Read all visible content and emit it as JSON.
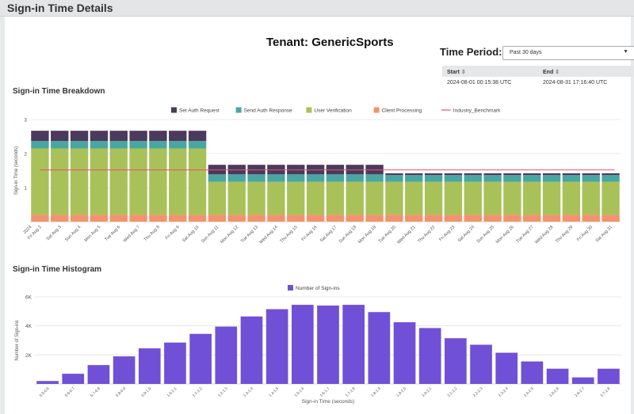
{
  "window": {
    "title": "Sign-in Time Details"
  },
  "tenant": {
    "label": "Tenant: GenericSports"
  },
  "time_period": {
    "label": "Time Period:",
    "selected": "Past 30 days",
    "table_headers": [
      "Start",
      "End"
    ],
    "start": "2024-08-01 00:15:38 UTC",
    "end": "2024-08-31 17:16:40 UTC"
  },
  "breakdown": {
    "title": "Sign-in Time Breakdown"
  },
  "histogram": {
    "title": "Sign-in Time Histogram"
  },
  "chart_data": [
    {
      "type": "bar",
      "stacked": true,
      "ylabel": "Sign-in Time (seconds)",
      "ylim": [
        0,
        3
      ],
      "yticks": [
        1,
        2,
        3
      ],
      "categories": [
        "Fri Aug 2",
        "Sat Aug 3",
        "Sun Aug 4",
        "Mon Aug 5",
        "Tue Aug 6",
        "Wed Aug 7",
        "Thu Aug 8",
        "Fri Aug 9",
        "Sat Aug 10",
        "Sun Aug 11",
        "Mon Aug 12",
        "Tue Aug 13",
        "Wed Aug 14",
        "Thu Aug 15",
        "Fri Aug 16",
        "Sat Aug 17",
        "Sun Aug 18",
        "Mon Aug 19",
        "Tue Aug 20",
        "Wed Aug 21",
        "Thu Aug 22",
        "Fri Aug 23",
        "Sat Aug 24",
        "Sun Aug 25",
        "Mon Aug 26",
        "Tue Aug 27",
        "Wed Aug 28",
        "Thu Aug 29",
        "Fri Aug 30",
        "Sat Aug 31"
      ],
      "first_tick_label": "2024",
      "series": [
        {
          "name": "Client Processing",
          "color": "#f4926c",
          "values": [
            0.2,
            0.2,
            0.2,
            0.2,
            0.2,
            0.2,
            0.2,
            0.2,
            0.2,
            0.2,
            0.2,
            0.2,
            0.2,
            0.2,
            0.2,
            0.2,
            0.2,
            0.2,
            0.2,
            0.2,
            0.2,
            0.2,
            0.2,
            0.2,
            0.2,
            0.2,
            0.2,
            0.2,
            0.2,
            0.2
          ]
        },
        {
          "name": "User Verification",
          "color": "#a9c159",
          "values": [
            1.95,
            1.95,
            1.95,
            1.95,
            1.95,
            1.95,
            1.95,
            1.95,
            1.95,
            0.97,
            0.97,
            0.97,
            0.97,
            0.97,
            0.97,
            0.97,
            0.97,
            0.97,
            0.97,
            0.97,
            0.97,
            0.97,
            0.97,
            0.97,
            0.97,
            0.97,
            0.97,
            0.97,
            0.97,
            0.97
          ]
        },
        {
          "name": "Send Auth Response",
          "color": "#4aa6a0",
          "values": [
            0.22,
            0.22,
            0.22,
            0.22,
            0.22,
            0.22,
            0.22,
            0.22,
            0.22,
            0.22,
            0.22,
            0.22,
            0.22,
            0.22,
            0.22,
            0.22,
            0.22,
            0.22,
            0.2,
            0.2,
            0.2,
            0.2,
            0.2,
            0.2,
            0.2,
            0.2,
            0.2,
            0.2,
            0.2,
            0.2
          ]
        },
        {
          "name": "Set Auth Request",
          "color": "#4b3a5c",
          "values": [
            0.3,
            0.3,
            0.3,
            0.3,
            0.3,
            0.3,
            0.3,
            0.3,
            0.3,
            0.28,
            0.28,
            0.28,
            0.28,
            0.28,
            0.28,
            0.28,
            0.28,
            0.28,
            0.05,
            0.05,
            0.05,
            0.05,
            0.05,
            0.05,
            0.05,
            0.05,
            0.05,
            0.05,
            0.05,
            0.05
          ]
        }
      ],
      "benchmark": {
        "name": "Industry_Benchmark",
        "color": "#e8526e",
        "value": 1.52
      },
      "legend_order": [
        "Set Auth Request",
        "Send Auth Response",
        "User Verification",
        "Client Processing",
        "Industry_Benchmark"
      ],
      "legend": "top-center",
      "grid": true
    },
    {
      "type": "bar",
      "xlabel": "Sign-in Time (seconds)",
      "ylabel": "Number of Sign-ins",
      "ylim": [
        0,
        6000
      ],
      "yticks": [
        {
          "v": 2000,
          "label": "2K"
        },
        {
          "v": 4000,
          "label": "4K"
        },
        {
          "v": 6000,
          "label": "6K"
        }
      ],
      "series": [
        {
          "name": "Number of Sign-ins",
          "color": "#7050d6"
        }
      ],
      "categories": [
        "0.5-0.6",
        "0.6-0.7",
        "0.7-0.8",
        "0.8-0.9",
        "0.9-1.0",
        "1.0-1.1",
        "1.1-1.2",
        "1.2-1.3",
        "1.3-1.4",
        "1.4-1.5",
        "1.5-1.6",
        "1.6-1.7",
        "1.7-1.8",
        "1.8-1.9",
        "1.9-2.0",
        "2.0-2.1",
        "2.1-2.2",
        "2.2-2.3",
        "2.3-2.4",
        "2.4-2.5",
        "2.5-2.6",
        "2.6-2.7",
        "2.7-2.8"
      ],
      "values": [
        200,
        700,
        1300,
        1900,
        2450,
        2850,
        3450,
        3950,
        4650,
        5150,
        5450,
        5400,
        5450,
        4950,
        4250,
        3850,
        3150,
        2700,
        2150,
        1550,
        1050,
        450,
        1050
      ],
      "legend": "top-center",
      "grid": true
    }
  ]
}
